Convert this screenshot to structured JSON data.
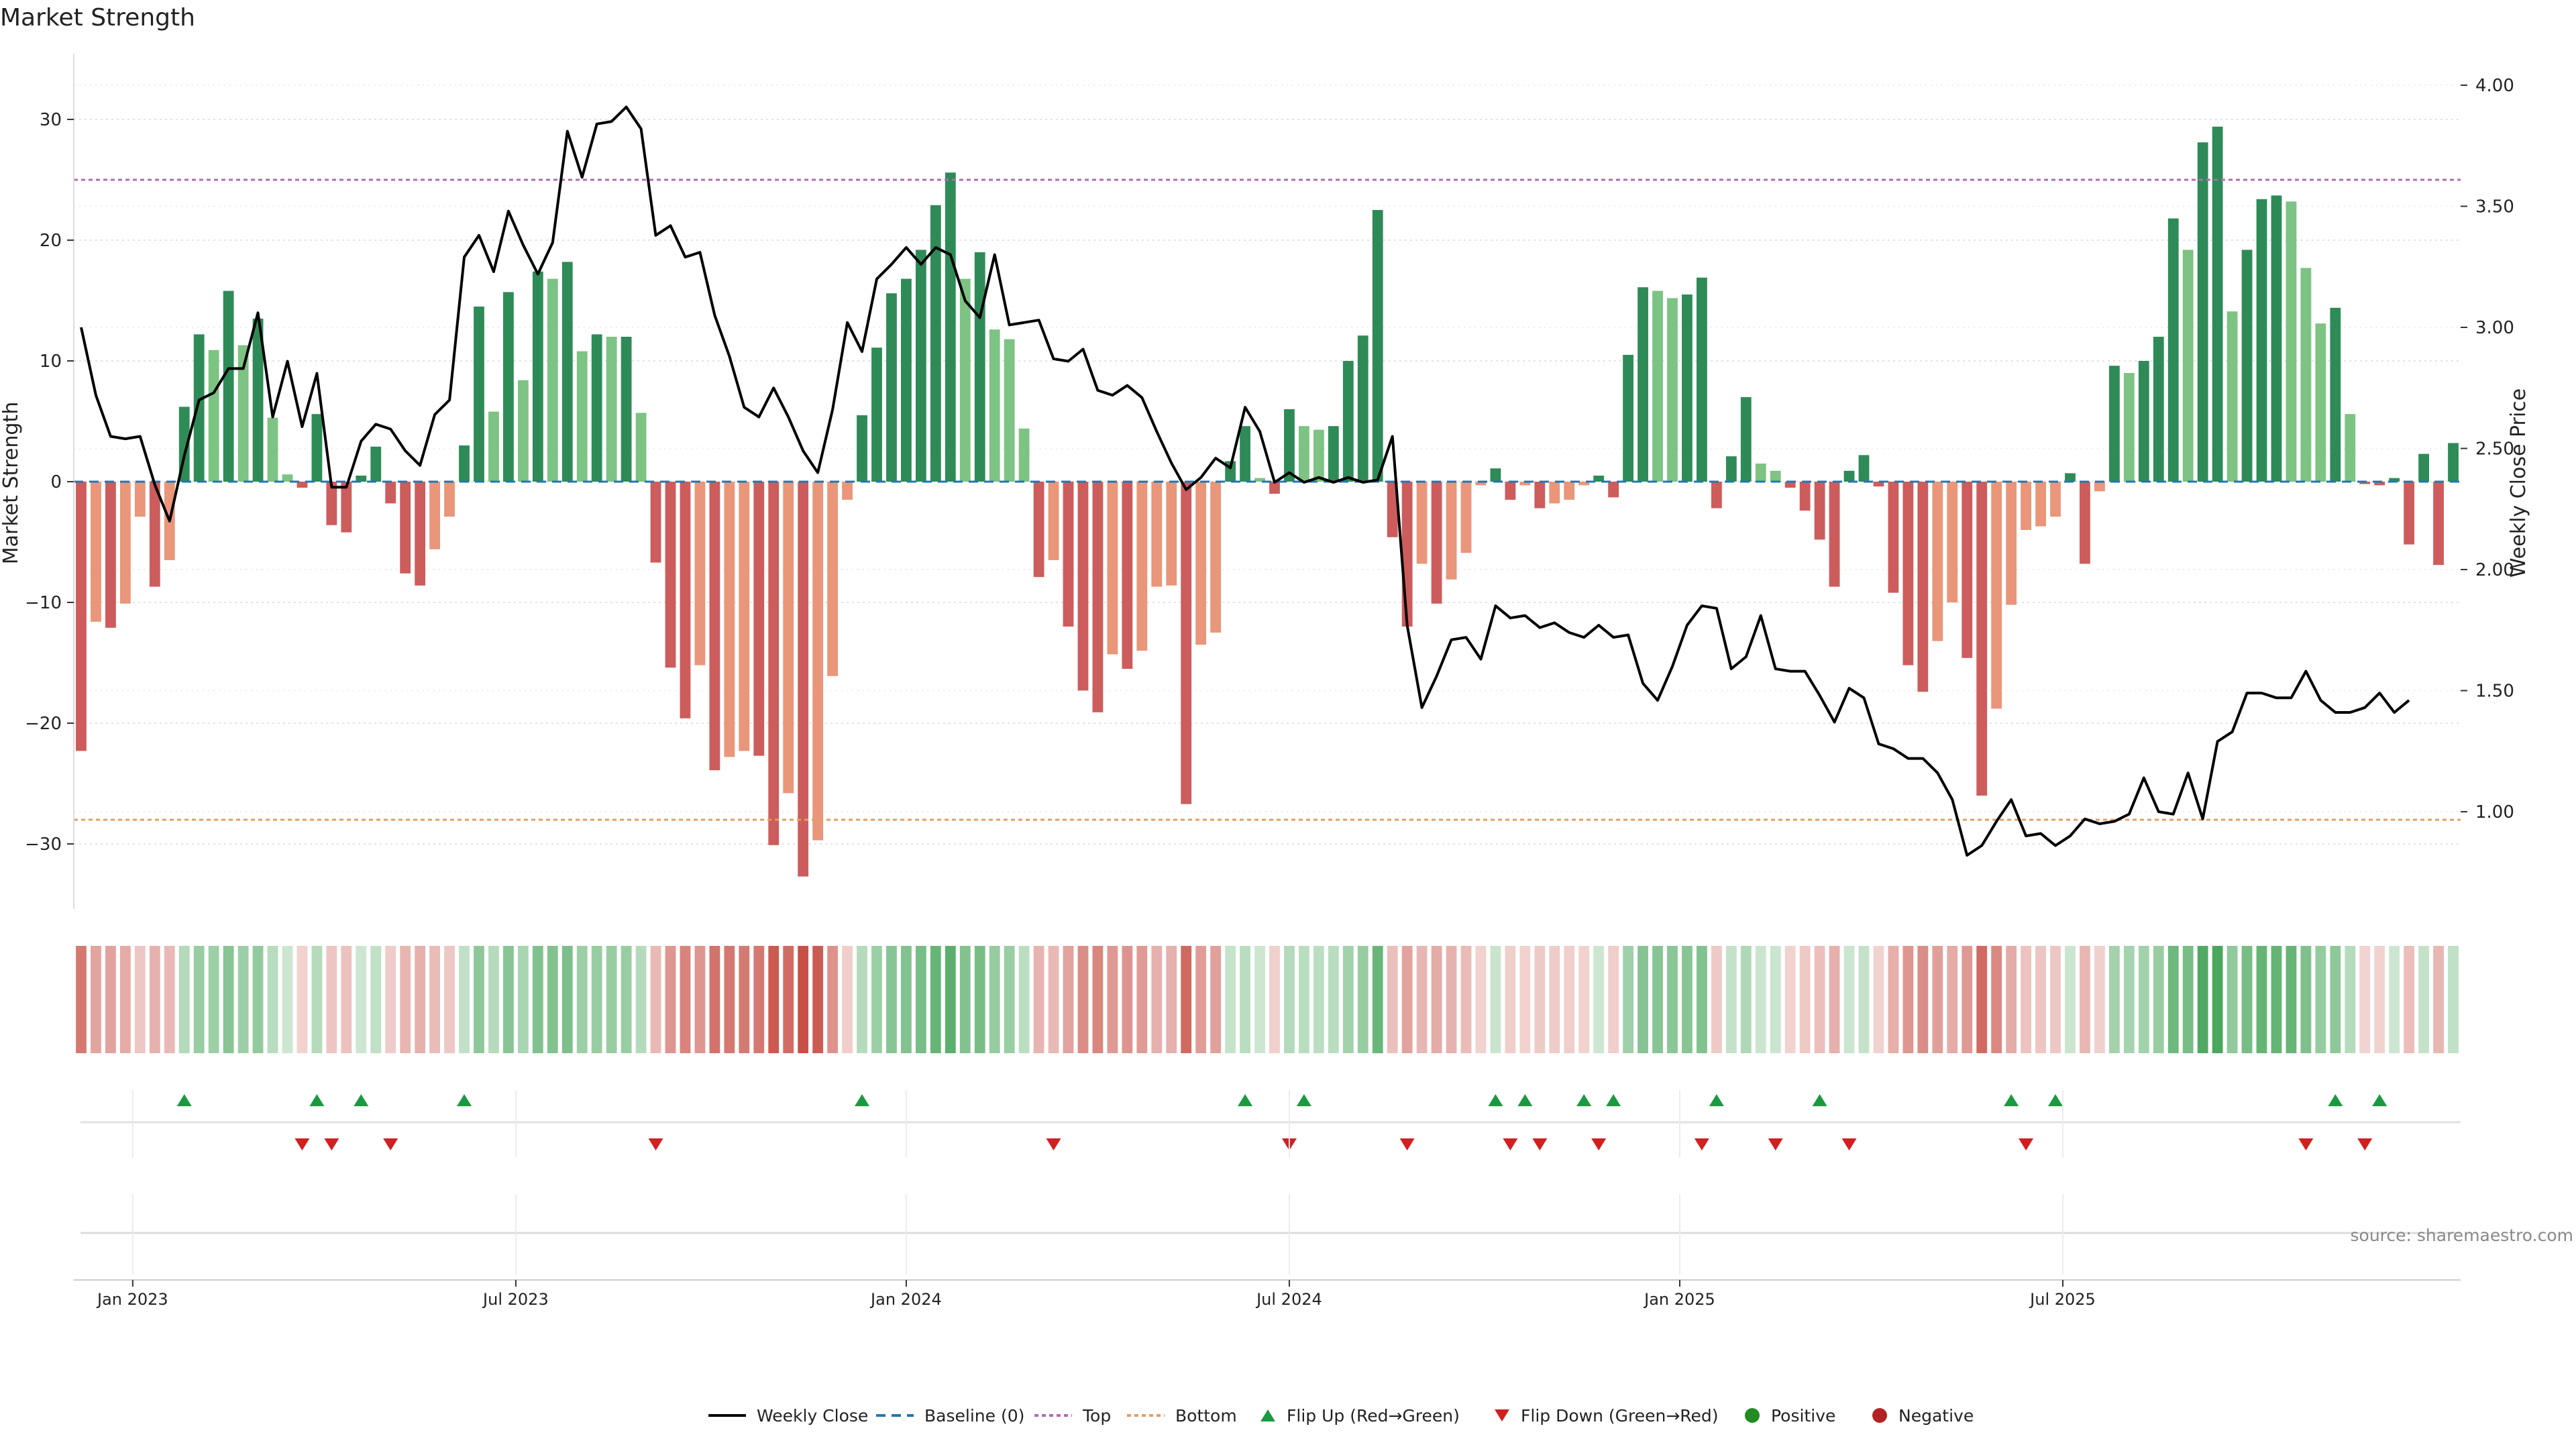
{
  "chart_data": {
    "type": "bar+line",
    "title": "Market Strength",
    "ylabel_left": "Market Strength",
    "ylabel_right": "Weekly Close Price",
    "ylim_left": [
      -35,
      35
    ],
    "ylim_right": [
      0.6,
      4.15
    ],
    "yticks_left": [
      30,
      20,
      10,
      0,
      -10,
      -20,
      -30
    ],
    "yticks_right": [
      4.0,
      3.5,
      3.0,
      2.5,
      2.0,
      1.5,
      1.0
    ],
    "ytick_labels_left": [
      "30",
      "20",
      "10",
      "0",
      "−10",
      "−20",
      "−30"
    ],
    "ytick_labels_right": [
      "4.00",
      "3.50",
      "3.00",
      "2.50",
      "2.00",
      "1.50",
      "1.00"
    ],
    "x_ticks": [
      {
        "label": "Jan 2023",
        "week": 4
      },
      {
        "label": "Jul 2023",
        "week": 30
      },
      {
        "label": "Jan 2024",
        "week": 56.5
      },
      {
        "label": "Jul 2024",
        "week": 82.5
      },
      {
        "label": "Jan 2025",
        "week": 109
      },
      {
        "label": "Jul 2025",
        "week": 135
      }
    ],
    "top_line": 25,
    "bottom_line": -28,
    "baseline": 0,
    "strength_values": [
      -22.3,
      -11.6,
      -12.1,
      -10.1,
      -2.9,
      -8.7,
      -6.5,
      6.2,
      12.2,
      10.9,
      15.8,
      11.3,
      13.5,
      5.3,
      0.6,
      -0.5,
      5.6,
      -3.6,
      -4.2,
      0.5,
      2.9,
      -1.8,
      -7.6,
      -8.6,
      -5.6,
      -2.9,
      3.0,
      14.5,
      5.8,
      15.7,
      8.4,
      17.4,
      16.8,
      18.2,
      10.8,
      12.2,
      12.0,
      12.0,
      5.7,
      -6.7,
      -15.4,
      -19.6,
      -15.2,
      -23.9,
      -22.8,
      -22.3,
      -22.7,
      -30.1,
      -25.8,
      -32.7,
      -29.7,
      -16.1,
      -1.5,
      5.5,
      11.1,
      15.6,
      16.8,
      19.2,
      22.9,
      25.6,
      16.8,
      19.0,
      12.6,
      11.8,
      4.4,
      -7.9,
      -6.5,
      -12.0,
      -17.3,
      -19.1,
      -14.3,
      -15.5,
      -14.0,
      -8.7,
      -8.6,
      -26.7,
      -13.5,
      -12.5,
      1.7,
      4.6,
      0.3,
      -1.0,
      6.0,
      4.6,
      4.3,
      4.6,
      10.0,
      12.1,
      22.5,
      -4.6,
      -12.0,
      -6.8,
      -10.1,
      -8.1,
      -5.9,
      -0.3,
      1.1,
      -1.5,
      -0.3,
      -2.2,
      -1.8,
      -1.5,
      -0.3,
      0.5,
      -1.3,
      10.5,
      16.1,
      15.8,
      15.2,
      15.5,
      16.9,
      -2.2,
      2.1,
      7.0,
      1.5,
      0.9,
      -0.5,
      -2.4,
      -4.8,
      -8.7,
      0.9,
      2.2,
      -0.4,
      -9.2,
      -15.2,
      -17.4,
      -13.2,
      -10.0,
      -14.6,
      -26.0,
      -18.8,
      -10.2,
      -4.0,
      -3.7,
      -2.9,
      0.7,
      -6.8,
      -0.8,
      9.6,
      9.0,
      10.0,
      12.0,
      21.8,
      19.2,
      28.1,
      29.4,
      14.1,
      19.2,
      23.4,
      23.7,
      23.2,
      17.7,
      13.1,
      14.4,
      5.6,
      -0.2,
      -0.3,
      0.3,
      -5.2,
      2.3,
      -6.9,
      3.2
    ],
    "close_values": [
      3.0,
      2.72,
      2.55,
      2.54,
      2.55,
      2.35,
      2.2,
      2.47,
      2.7,
      2.73,
      2.83,
      2.83,
      3.06,
      2.63,
      2.86,
      2.59,
      2.81,
      2.34,
      2.34,
      2.53,
      2.6,
      2.58,
      2.49,
      2.43,
      2.64,
      2.7,
      3.29,
      3.38,
      3.23,
      3.48,
      3.34,
      3.22,
      3.35,
      3.81,
      3.62,
      3.84,
      3.85,
      3.91,
      3.82,
      3.38,
      3.42,
      3.29,
      3.31,
      3.05,
      2.88,
      2.67,
      2.63,
      2.75,
      2.63,
      2.49,
      2.4,
      2.66,
      3.02,
      2.9,
      3.2,
      3.26,
      3.33,
      3.26,
      3.33,
      3.3,
      3.11,
      3.04,
      3.3,
      3.01,
      3.02,
      3.03,
      2.87,
      2.86,
      2.91,
      2.74,
      2.72,
      2.76,
      2.71,
      2.57,
      2.44,
      2.33,
      2.38,
      2.46,
      2.42,
      2.67,
      2.57,
      2.36,
      2.4,
      2.36,
      2.38,
      2.36,
      2.38,
      2.36,
      2.37,
      2.55,
      1.77,
      1.43,
      1.56,
      1.71,
      1.72,
      1.63,
      1.85,
      1.8,
      1.81,
      1.76,
      1.78,
      1.74,
      1.72,
      1.77,
      1.72,
      1.73,
      1.53,
      1.46,
      1.6,
      1.77,
      1.85,
      1.84,
      1.59,
      1.64,
      1.81,
      1.59,
      1.58,
      1.58,
      1.48,
      1.37,
      1.51,
      1.47,
      1.28,
      1.26,
      1.22,
      1.22,
      1.16,
      1.05,
      0.82,
      0.86,
      0.96,
      1.05,
      0.9,
      0.91,
      0.86,
      0.9,
      0.97,
      0.95,
      0.96,
      0.99,
      1.14,
      1.0,
      0.99,
      1.16,
      0.97,
      1.29,
      1.33,
      1.49,
      1.49,
      1.47,
      1.47,
      1.58,
      1.46,
      1.41,
      1.41,
      1.43,
      1.49,
      1.41,
      1.46
    ],
    "flip_up_weeks": [
      7,
      16,
      19,
      26,
      53,
      79,
      83,
      96,
      98,
      102,
      104,
      111,
      118,
      131,
      134,
      153,
      156
    ],
    "flip_down_weeks": [
      15,
      17,
      21,
      39,
      66,
      82,
      90,
      97,
      99,
      103,
      110,
      115,
      120,
      132,
      151,
      155
    ],
    "source": "source: sharemaestro.com",
    "legend": [
      "Weekly Close",
      "Baseline (0)",
      "Top",
      "Bottom",
      "Flip Up (Red→Green)",
      "Flip Down (Green→Red)",
      "Positive",
      "Negative"
    ],
    "colors": {
      "pos_strong": "#2e8b57",
      "pos_light": "#7dc383",
      "neg_strong": "#cd5c5c",
      "neg_light": "#e9967a",
      "line": "#000000",
      "top": "#b06cb0",
      "bottom": "#e0a060",
      "baseline": "#1f77b4",
      "flip_up": "#1a9a40",
      "flip_down": "#d02020",
      "positive_dot": "#228b22",
      "negative_dot": "#b22222"
    }
  }
}
